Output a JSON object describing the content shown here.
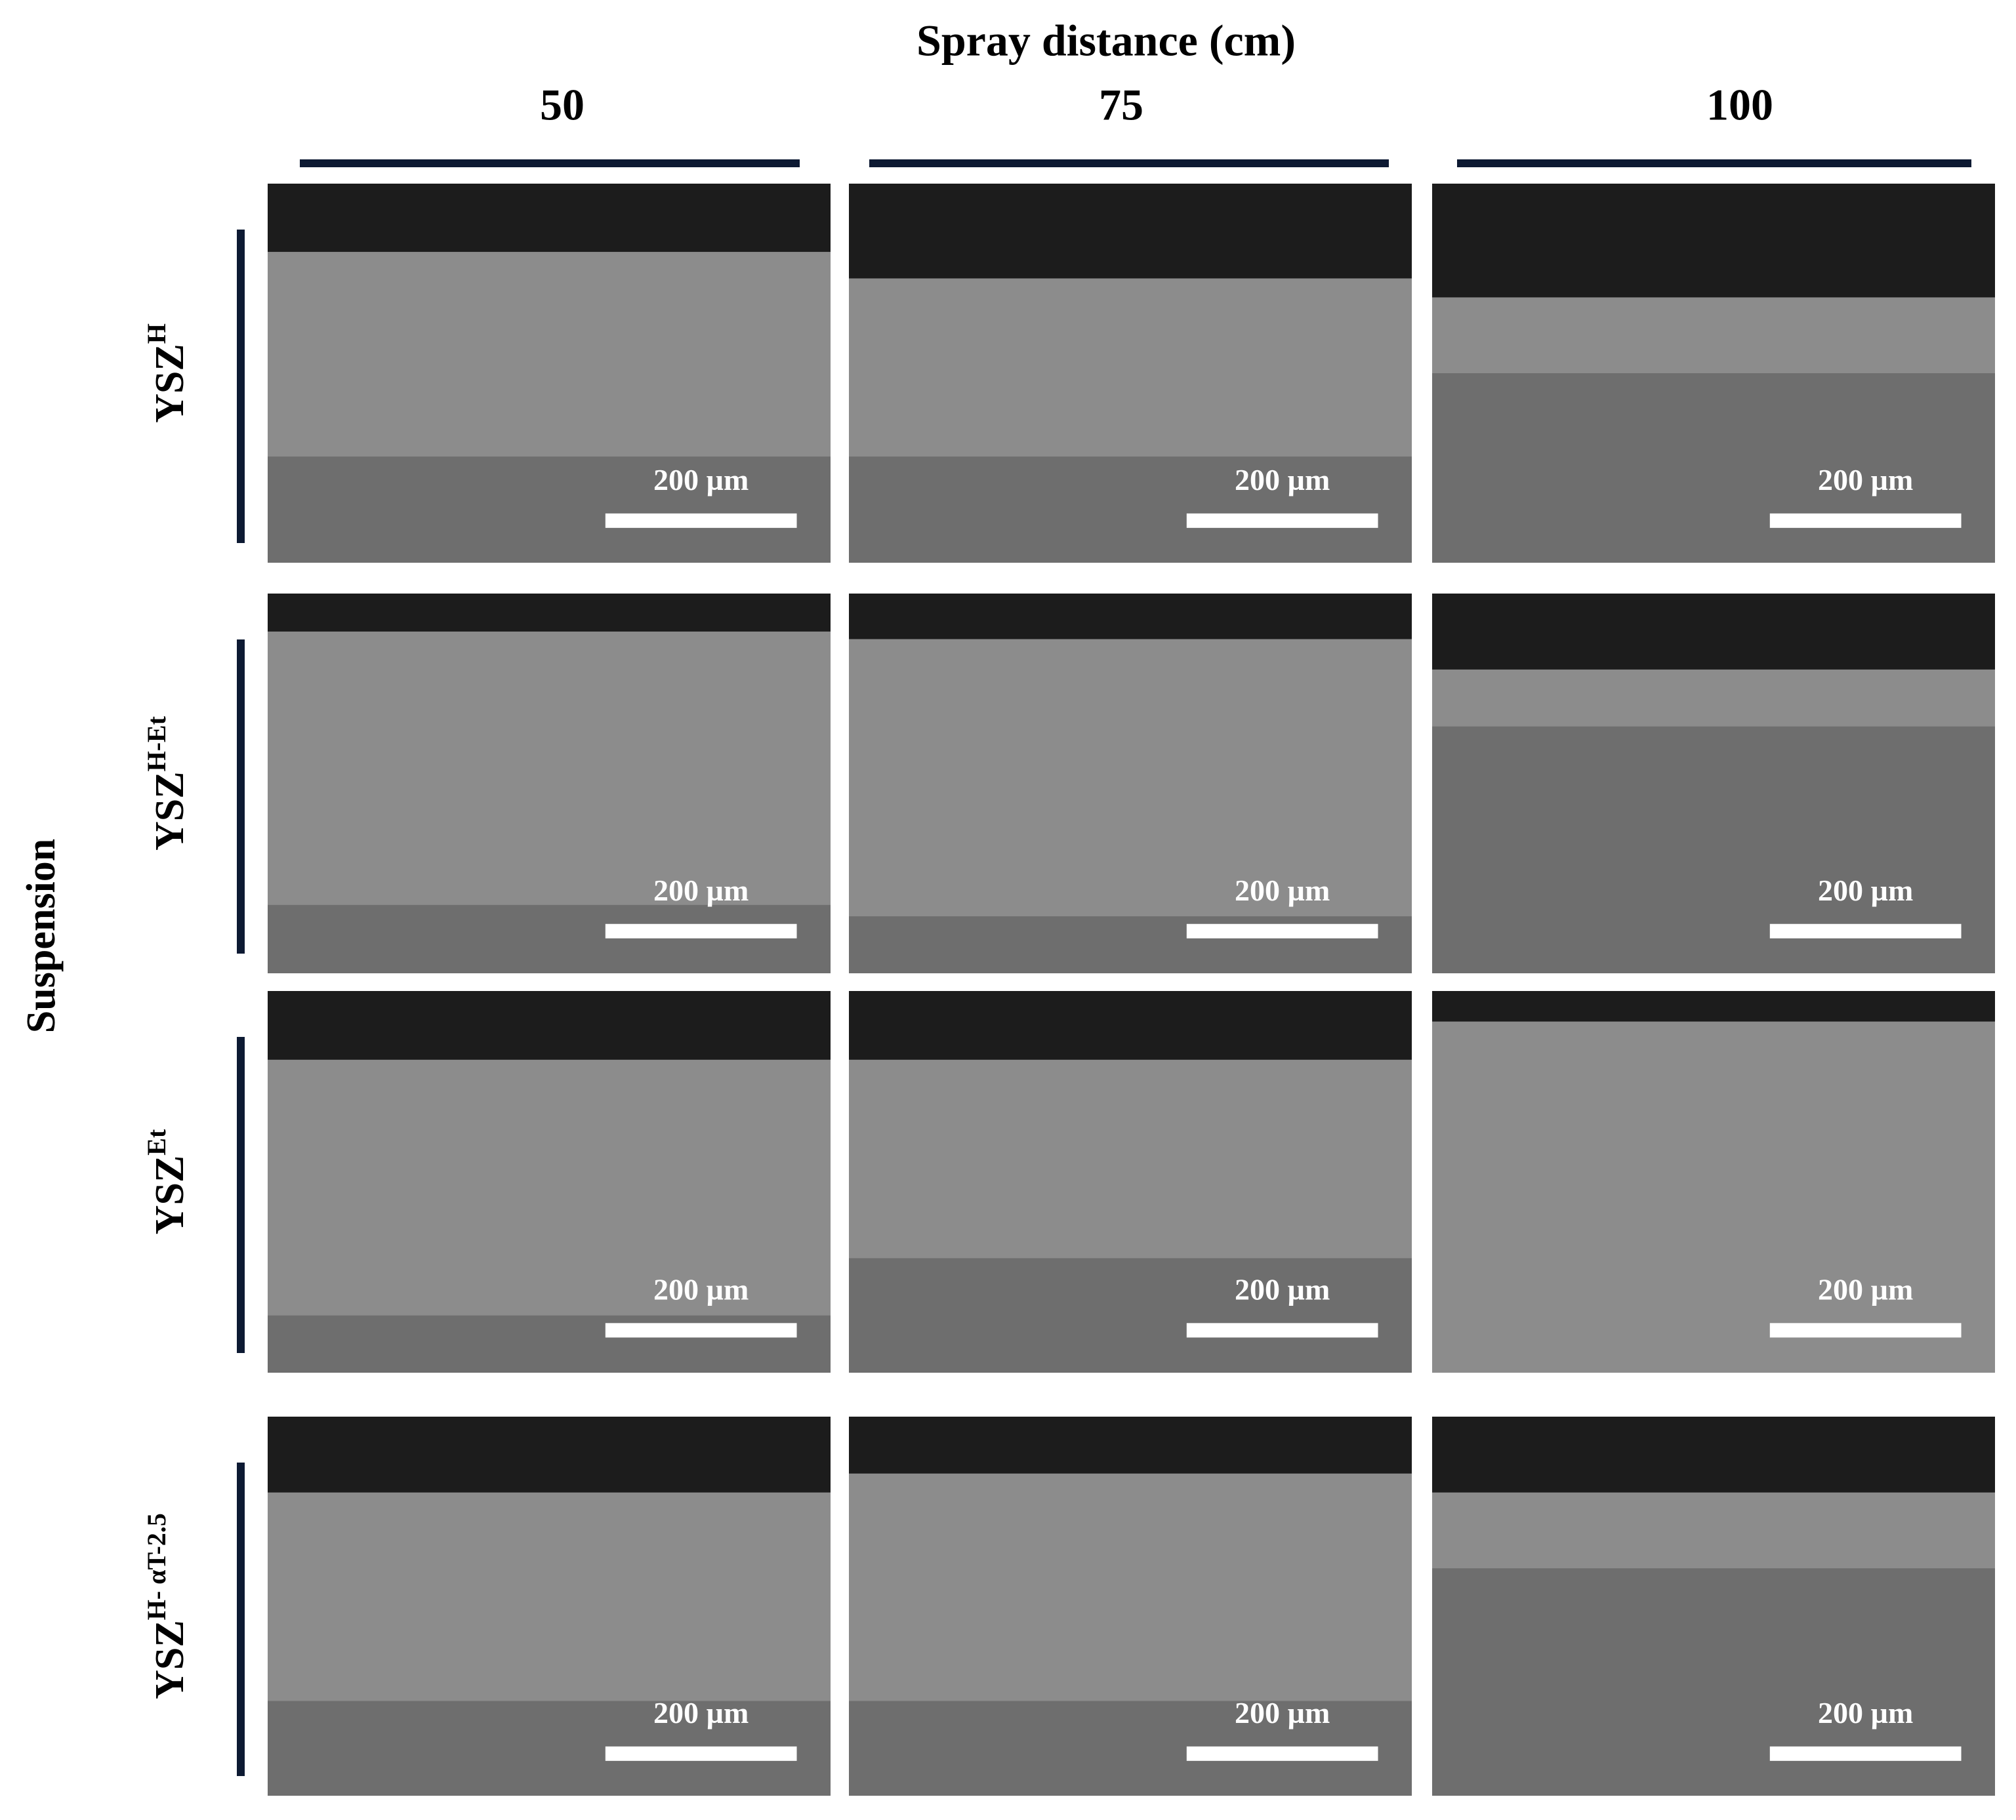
{
  "header": {
    "title": "Spray distance (cm)",
    "columns": [
      "50",
      "75",
      "100"
    ]
  },
  "row_group_label": "Suspension",
  "rows": [
    {
      "base": "YSZ",
      "sup": "H"
    },
    {
      "base": "YSZ",
      "sup": "H-Et"
    },
    {
      "base": "YSZ",
      "sup": "Et"
    },
    {
      "base": "YSZ",
      "sup": "H- αT-2.5"
    }
  ],
  "panels": [
    [
      {
        "scale_label": "200 µm"
      },
      {
        "scale_label": "200 µm"
      },
      {
        "scale_label": "200 µm"
      }
    ],
    [
      {
        "scale_label": "200 µm"
      },
      {
        "scale_label": "200 µm"
      },
      {
        "scale_label": "200 µm"
      }
    ],
    [
      {
        "scale_label": "200 µm"
      },
      {
        "scale_label": "200 µm"
      },
      {
        "scale_label": "200 µm"
      }
    ],
    [
      {
        "scale_label": "200 µm"
      },
      {
        "scale_label": "200 µm"
      },
      {
        "scale_label": "200 µm"
      }
    ]
  ]
}
